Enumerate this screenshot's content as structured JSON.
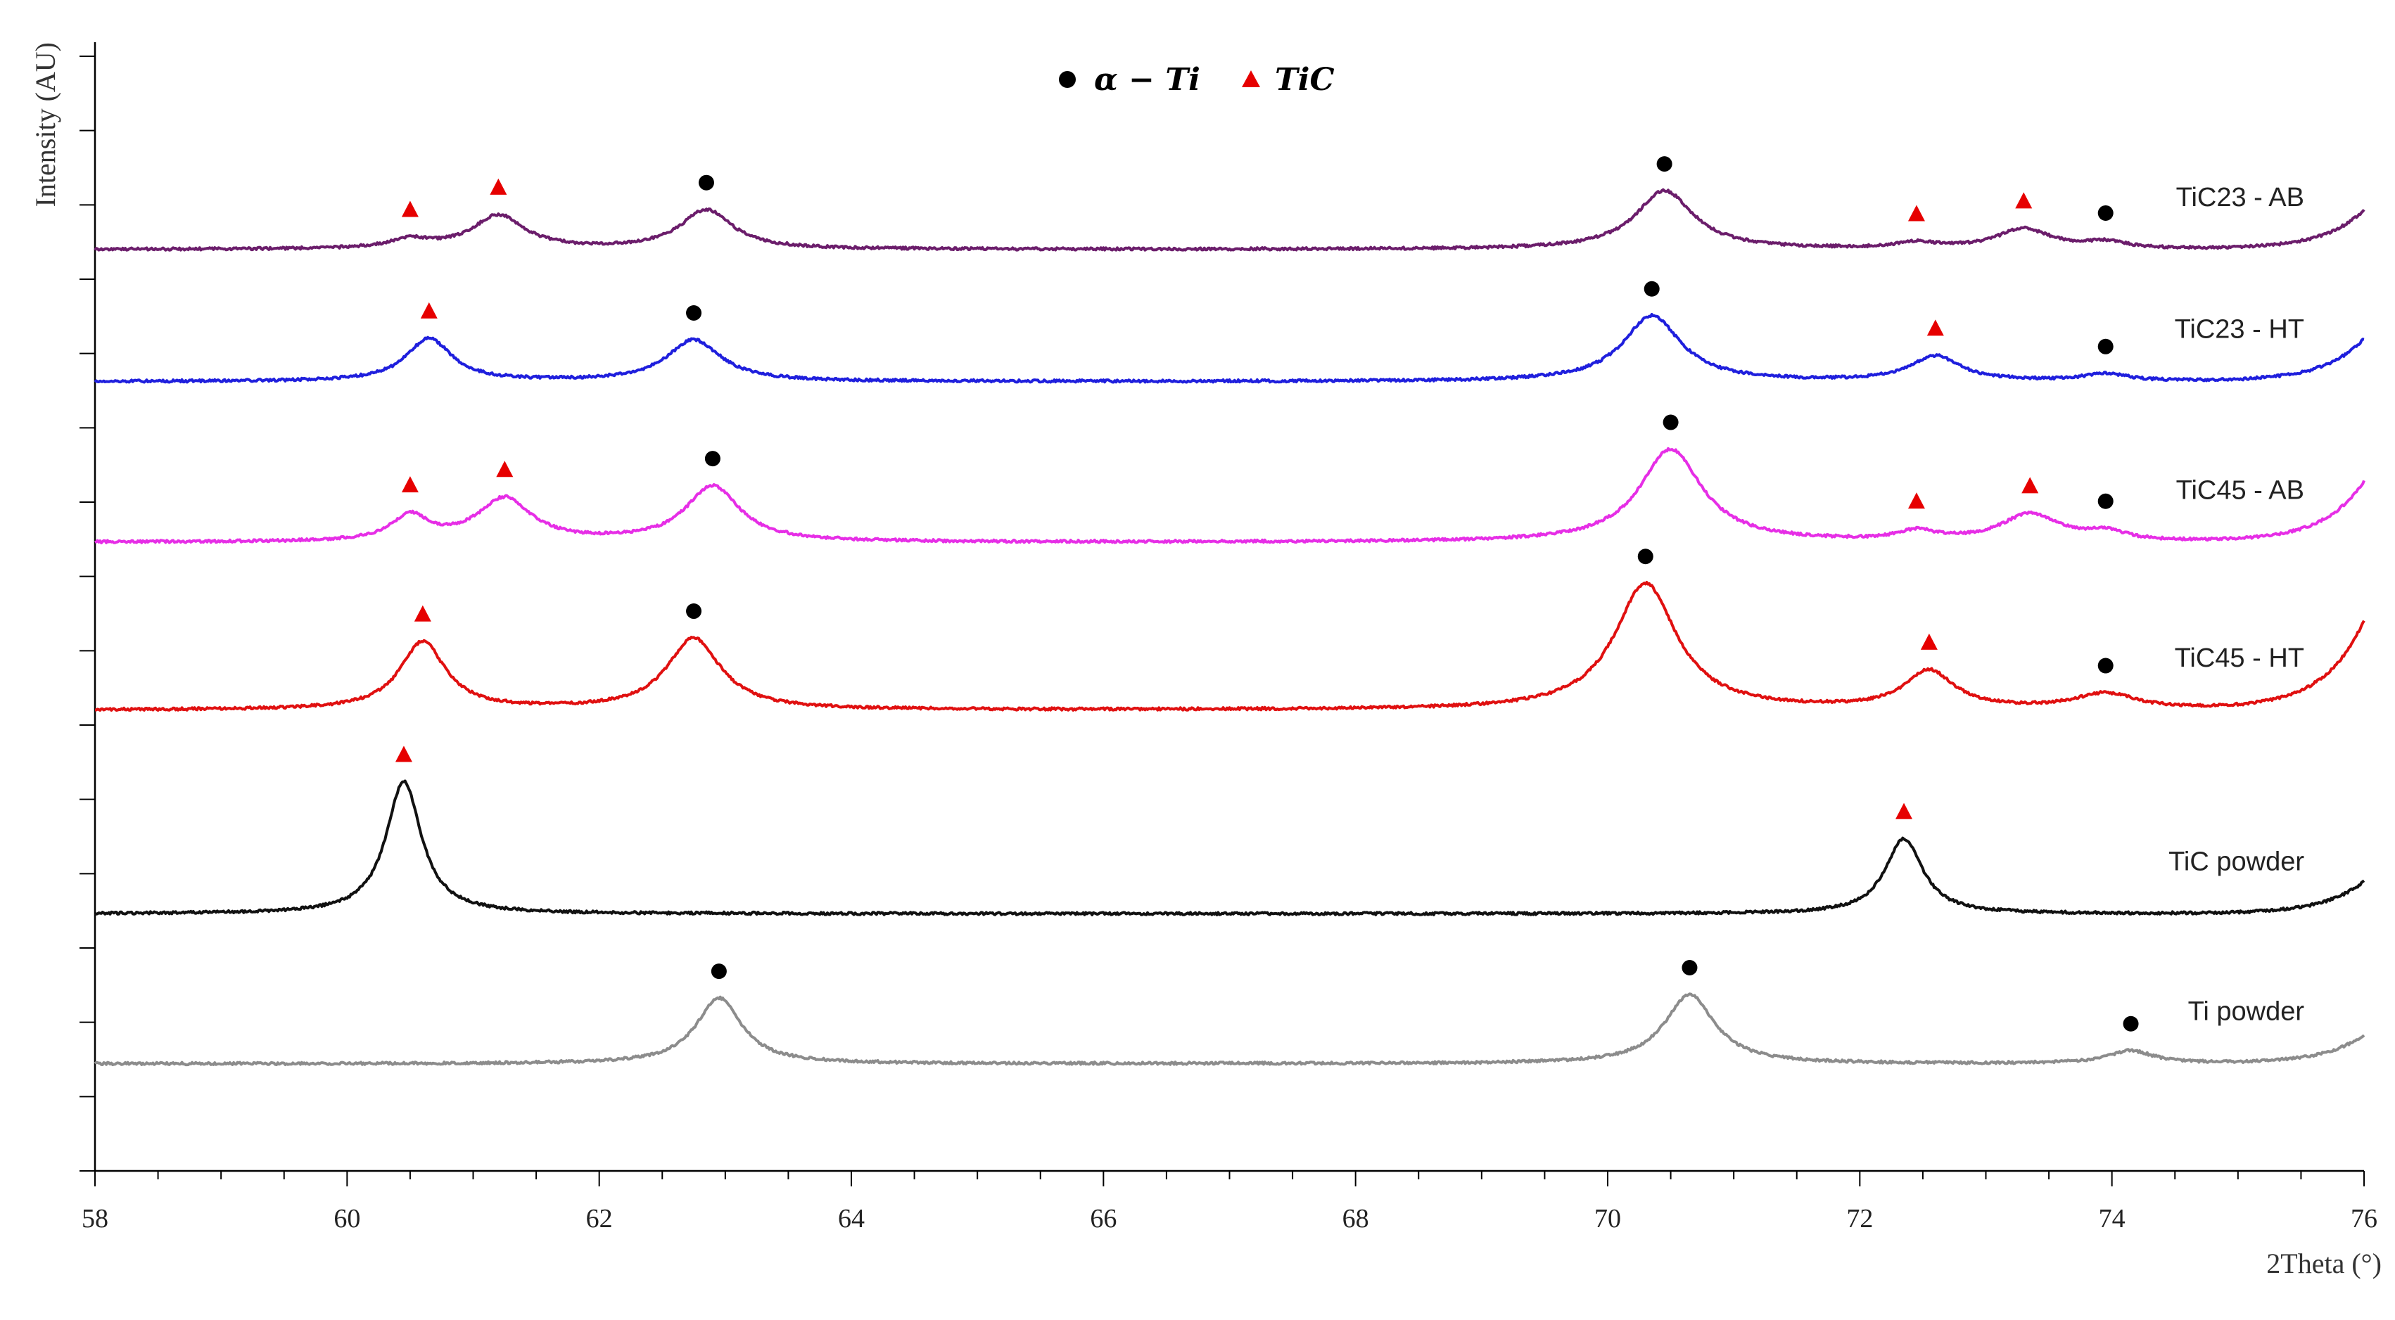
{
  "chart_data": {
    "type": "line",
    "title": "",
    "xlabel": "2Theta (°)",
    "ylabel": "Intensity (AU)",
    "xlim": [
      58,
      76
    ],
    "x_ticks": [
      58,
      60,
      62,
      64,
      66,
      68,
      70,
      72,
      74,
      76
    ],
    "x_tick_labels": [
      "58",
      "60",
      "62",
      "64",
      "66",
      "68",
      "70",
      "72",
      "74",
      "76"
    ],
    "y_tick_count": 15,
    "grid": false,
    "legend": {
      "position": "top-center",
      "entries": [
        {
          "label": "α − Ti",
          "marker": "circle",
          "color": "#000000"
        },
        {
          "label": "TiC",
          "marker": "triangle",
          "color": "#e60000"
        }
      ]
    },
    "series": [
      {
        "name": "TiC23 - AB",
        "color": "#6b1d6b",
        "baseline": 12.9,
        "end_rise": 0.55,
        "peaks": [
          {
            "x": 60.5,
            "h": 0.12,
            "w": 0.2,
            "marker": "triangle"
          },
          {
            "x": 61.2,
            "h": 0.47,
            "w": 0.25,
            "marker": "triangle"
          },
          {
            "x": 62.85,
            "h": 0.55,
            "w": 0.25,
            "marker": "circle"
          },
          {
            "x": 70.45,
            "h": 0.82,
            "w": 0.28,
            "marker": "circle"
          },
          {
            "x": 72.45,
            "h": 0.08,
            "w": 0.2,
            "marker": "triangle"
          },
          {
            "x": 73.3,
            "h": 0.28,
            "w": 0.26,
            "marker": "triangle"
          },
          {
            "x": 73.95,
            "h": 0.09,
            "w": 0.2,
            "marker": "circle"
          }
        ]
      },
      {
        "name": "TiC23 - HT",
        "color": "#1f1fdd",
        "baseline": 11.05,
        "end_rise": 0.6,
        "peaks": [
          {
            "x": 60.65,
            "h": 0.6,
            "w": 0.22,
            "marker": "triangle"
          },
          {
            "x": 62.75,
            "h": 0.58,
            "w": 0.26,
            "marker": "circle"
          },
          {
            "x": 70.35,
            "h": 0.92,
            "w": 0.28,
            "marker": "circle"
          },
          {
            "x": 72.6,
            "h": 0.35,
            "w": 0.24,
            "marker": "triangle"
          },
          {
            "x": 73.95,
            "h": 0.1,
            "w": 0.22,
            "marker": "circle"
          }
        ]
      },
      {
        "name": "TiC45 - AB",
        "color": "#e62ee6",
        "baseline": 8.8,
        "end_rise": 0.85,
        "peaks": [
          {
            "x": 60.5,
            "h": 0.35,
            "w": 0.18,
            "marker": "triangle"
          },
          {
            "x": 61.25,
            "h": 0.6,
            "w": 0.26,
            "marker": "triangle"
          },
          {
            "x": 62.9,
            "h": 0.78,
            "w": 0.26,
            "marker": "circle"
          },
          {
            "x": 70.5,
            "h": 1.3,
            "w": 0.3,
            "marker": "circle"
          },
          {
            "x": 72.45,
            "h": 0.13,
            "w": 0.18,
            "marker": "triangle"
          },
          {
            "x": 73.35,
            "h": 0.38,
            "w": 0.28,
            "marker": "triangle"
          },
          {
            "x": 73.95,
            "h": 0.12,
            "w": 0.2,
            "marker": "circle"
          }
        ]
      },
      {
        "name": "TiC45 - HT",
        "color": "#e01010",
        "baseline": 6.45,
        "end_rise": 1.25,
        "peaks": [
          {
            "x": 60.6,
            "h": 0.95,
            "w": 0.22,
            "marker": "triangle"
          },
          {
            "x": 62.75,
            "h": 1.0,
            "w": 0.26,
            "marker": "circle"
          },
          {
            "x": 70.3,
            "h": 1.77,
            "w": 0.3,
            "marker": "circle"
          },
          {
            "x": 72.55,
            "h": 0.53,
            "w": 0.24,
            "marker": "triangle"
          },
          {
            "x": 73.95,
            "h": 0.22,
            "w": 0.3,
            "marker": "circle"
          }
        ]
      },
      {
        "name": "TiC powder",
        "color": "#111111",
        "baseline": 3.6,
        "end_rise": 0.45,
        "peaks": [
          {
            "x": 60.45,
            "h": 1.85,
            "w": 0.17,
            "marker": "triangle"
          },
          {
            "x": 72.35,
            "h": 1.05,
            "w": 0.18,
            "marker": "triangle"
          }
        ]
      },
      {
        "name": "Ti powder",
        "color": "#8c8c8c",
        "baseline": 1.5,
        "end_rise": 0.4,
        "peaks": [
          {
            "x": 62.95,
            "h": 0.92,
            "w": 0.22,
            "marker": "circle"
          },
          {
            "x": 70.65,
            "h": 0.97,
            "w": 0.24,
            "marker": "circle"
          },
          {
            "x": 74.15,
            "h": 0.18,
            "w": 0.22,
            "marker": "circle"
          }
        ]
      }
    ]
  }
}
